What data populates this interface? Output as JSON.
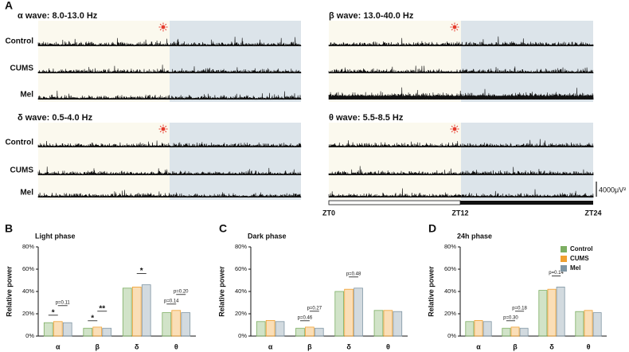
{
  "panel_a": {
    "letter": "A",
    "waves": [
      {
        "title": "α wave: 8.0-13.0 Hz"
      },
      {
        "title": "β wave: 13.0-40.0 Hz"
      },
      {
        "title": "δ wave: 0.5-4.0 Hz"
      },
      {
        "title": "θ wave: 5.5-8.5 Hz"
      }
    ],
    "rows": [
      "Control",
      "CUMS",
      "Mel"
    ],
    "scale": "4000μV²",
    "timeline": [
      "ZT0",
      "ZT12",
      "ZT24"
    ]
  },
  "chart_data": [
    {
      "type": "bar",
      "letter": "B",
      "title": "Light phase",
      "y_label": "Relative power",
      "categories": [
        "α",
        "β",
        "δ",
        "θ"
      ],
      "series": [
        {
          "name": "Control",
          "color": "#7cae62",
          "values": [
            12,
            7,
            43,
            21
          ]
        },
        {
          "name": "CUMS",
          "color": "#f0a030",
          "values": [
            13,
            8,
            44,
            23
          ]
        },
        {
          "name": "Mel",
          "color": "#7f95a3",
          "values": [
            12,
            7,
            46,
            21
          ]
        }
      ],
      "ylim": [
        0,
        80
      ],
      "yticks": [
        {
          "value": 0,
          "label": "0%"
        },
        {
          "value": 20,
          "label": "20%"
        },
        {
          "value": 40,
          "label": "40%"
        },
        {
          "value": 60,
          "label": "60%"
        },
        {
          "value": 80,
          "label": "80%"
        }
      ],
      "annotations": [
        {
          "category": "α",
          "between": [
            "Control",
            "CUMS"
          ],
          "text": "*"
        },
        {
          "category": "α",
          "between": [
            "CUMS",
            "Mel"
          ],
          "text": "p=0.11"
        },
        {
          "category": "β",
          "between": [
            "Control",
            "CUMS"
          ],
          "text": "*"
        },
        {
          "category": "β",
          "between": [
            "CUMS",
            "Mel"
          ],
          "text": "**"
        },
        {
          "category": "δ",
          "between": [
            "CUMS",
            "Mel"
          ],
          "text": "*"
        },
        {
          "category": "θ",
          "between": [
            "Control",
            "CUMS"
          ],
          "text": "p=0.14"
        },
        {
          "category": "θ",
          "between": [
            "CUMS",
            "Mel"
          ],
          "text": "p=0.20"
        }
      ]
    },
    {
      "type": "bar",
      "letter": "C",
      "title": "Dark phase",
      "y_label": "Relative power",
      "categories": [
        "α",
        "β",
        "δ",
        "θ"
      ],
      "series": [
        {
          "name": "Control",
          "color": "#7cae62",
          "values": [
            13,
            7,
            40,
            23
          ]
        },
        {
          "name": "CUMS",
          "color": "#f0a030",
          "values": [
            14,
            8,
            42,
            23
          ]
        },
        {
          "name": "Mel",
          "color": "#7f95a3",
          "values": [
            13,
            7,
            43,
            22
          ]
        }
      ],
      "ylim": [
        0,
        80
      ],
      "yticks": [
        {
          "value": 0,
          "label": "0%"
        },
        {
          "value": 20,
          "label": "20%"
        },
        {
          "value": 40,
          "label": "40%"
        },
        {
          "value": 60,
          "label": "60%"
        },
        {
          "value": 80,
          "label": "80%"
        }
      ],
      "annotations": [
        {
          "category": "β",
          "between": [
            "Control",
            "CUMS"
          ],
          "text": "p=0.46"
        },
        {
          "category": "β",
          "between": [
            "CUMS",
            "Mel"
          ],
          "text": "p=0.27"
        },
        {
          "category": "δ",
          "between": [
            "CUMS",
            "Mel"
          ],
          "text": "p=0.48"
        }
      ]
    },
    {
      "type": "bar",
      "letter": "D",
      "title": "24h phase",
      "y_label": "Relative power",
      "legend": "upper right",
      "categories": [
        "α",
        "β",
        "δ",
        "θ"
      ],
      "series": [
        {
          "name": "Control",
          "color": "#7cae62",
          "values": [
            13,
            7,
            41,
            22
          ]
        },
        {
          "name": "CUMS",
          "color": "#f0a030",
          "values": [
            14,
            8,
            42,
            23
          ]
        },
        {
          "name": "Mel",
          "color": "#7f95a3",
          "values": [
            13,
            7,
            44,
            21
          ]
        }
      ],
      "ylim": [
        0,
        80
      ],
      "yticks": [
        {
          "value": 0,
          "label": "0%"
        },
        {
          "value": 20,
          "label": "20%"
        },
        {
          "value": 40,
          "label": "40%"
        },
        {
          "value": 60,
          "label": "60%"
        },
        {
          "value": 80,
          "label": "80%"
        }
      ],
      "annotations": [
        {
          "category": "β",
          "between": [
            "Control",
            "CUMS"
          ],
          "text": "p=0.30"
        },
        {
          "category": "β",
          "between": [
            "CUMS",
            "Mel"
          ],
          "text": "p=0.18"
        },
        {
          "category": "δ",
          "between": [
            "CUMS",
            "Mel"
          ],
          "text": "p=0.14"
        }
      ]
    }
  ]
}
